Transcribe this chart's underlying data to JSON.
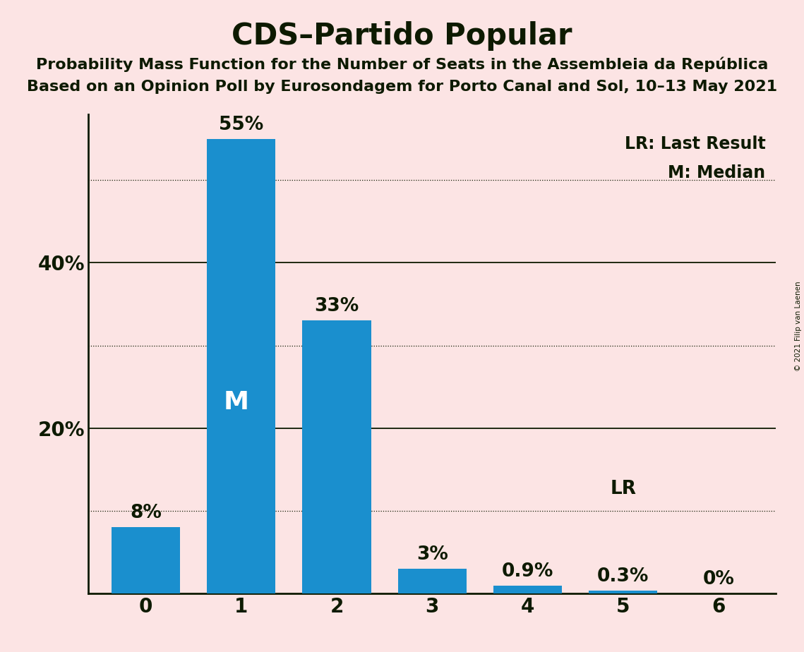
{
  "title": "CDS–Partido Popular",
  "subtitle1": "Probability Mass Function for the Number of Seats in the Assembleia da República",
  "subtitle2": "Based on an Opinion Poll by Eurosondagem for Porto Canal and Sol, 10–13 May 2021",
  "copyright": "© 2021 Filip van Laenen",
  "categories": [
    0,
    1,
    2,
    3,
    4,
    5,
    6
  ],
  "values": [
    8.0,
    55.0,
    33.0,
    3.0,
    0.9,
    0.3,
    0.0
  ],
  "bar_color": "#1a8fce",
  "background_color": "#fce4e4",
  "text_color": "#0d1a00",
  "label_above": [
    "8%",
    "55%",
    "33%",
    "3%",
    "0.9%",
    "0.3%",
    "0%"
  ],
  "median_bar": 1,
  "median_label": "M",
  "lr_bar": 5,
  "lr_label": "LR",
  "legend_line1": "LR: Last Result",
  "legend_line2": "M: Median",
  "ylim": [
    0,
    58
  ],
  "yticks": [
    20,
    40
  ],
  "ytick_labels": [
    "20%",
    "40%"
  ],
  "dotted_ticks": [
    10,
    30,
    50
  ],
  "solid_ticks": [
    20,
    40
  ],
  "title_fontsize": 30,
  "subtitle_fontsize": 16,
  "bar_label_fontsize": 19,
  "axis_tick_fontsize": 20,
  "legend_fontsize": 17,
  "median_fontsize": 26
}
